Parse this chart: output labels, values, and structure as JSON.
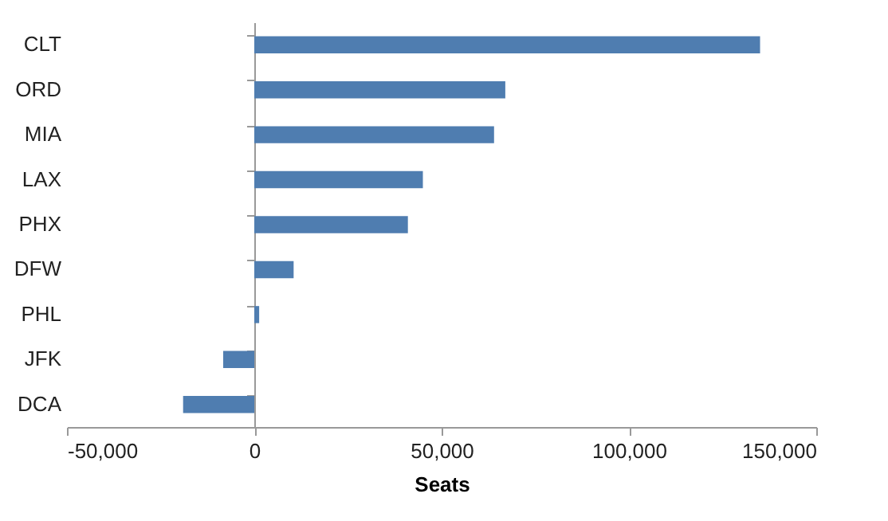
{
  "chart_data": {
    "type": "bar",
    "orientation": "horizontal",
    "xlabel": "Seats",
    "categories": [
      "CLT",
      "ORD",
      "MIA",
      "LAX",
      "PHX",
      "DFW",
      "PHL",
      "JFK",
      "DCA"
    ],
    "values": [
      135000,
      67000,
      64000,
      45000,
      41000,
      10500,
      1300,
      -8300,
      -19000
    ],
    "color": "#4f7db0",
    "xlim": [
      -50000,
      150000
    ],
    "xticks": [
      {
        "value": -50000,
        "label": "-50,000"
      },
      0,
      {
        "value": 50000,
        "label": "50,000"
      },
      {
        "value": 100000,
        "label": "100,000"
      },
      {
        "value": 150000,
        "label": "150,000"
      }
    ]
  }
}
